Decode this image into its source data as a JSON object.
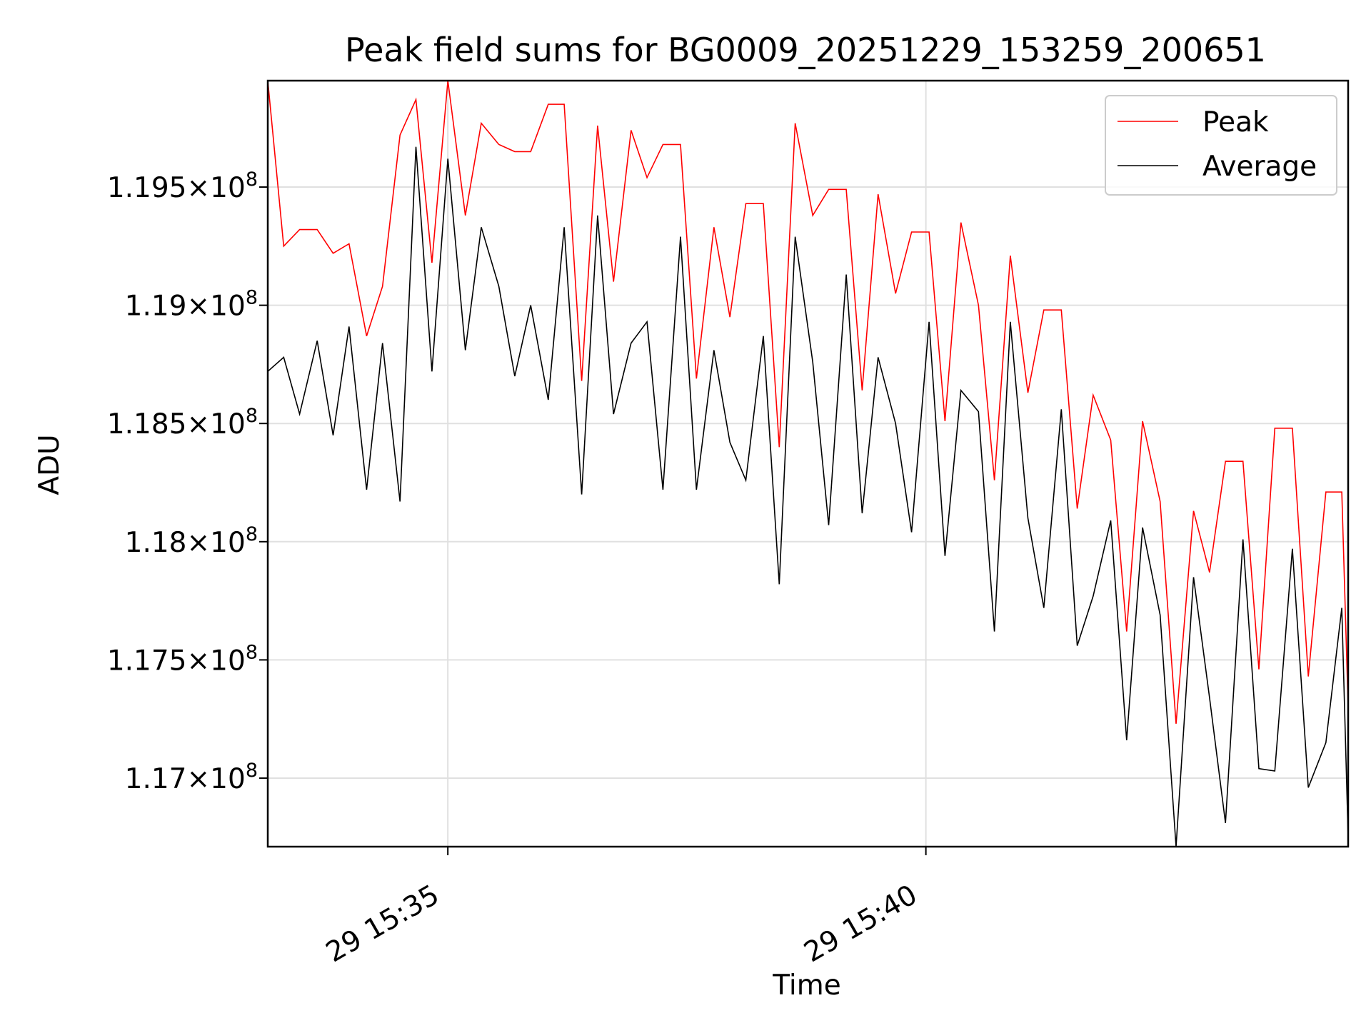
{
  "chart_data": {
    "type": "line",
    "title": "Peak field sums for BG0009_20251229_153259_200651",
    "xlabel": "Time",
    "ylabel": "ADU",
    "xlim": [
      "29 15:33:07",
      "29 15:44:25"
    ],
    "ylim": [
      116710000,
      119950000
    ],
    "grid": true,
    "legend": "top-right",
    "x_ticks": [
      {
        "value": "29 15:35:00",
        "label": "29 15:35"
      },
      {
        "value": "29 15:40:00",
        "label": "29 15:40"
      }
    ],
    "y_ticks": [
      {
        "value": 117000000,
        "label": "1.17",
        "exp": "8"
      },
      {
        "value": 117500000,
        "label": "1.175",
        "exp": "8"
      },
      {
        "value": 118000000,
        "label": "1.18",
        "exp": "8"
      },
      {
        "value": 118500000,
        "label": "1.185",
        "exp": "8"
      },
      {
        "value": 119000000,
        "label": "1.19",
        "exp": "8"
      },
      {
        "value": 119500000,
        "label": "1.195",
        "exp": "8"
      }
    ],
    "x": [
      "29 15:33:07",
      "29 15:33:17",
      "29 15:33:27",
      "29 15:33:38",
      "29 15:33:48",
      "29 15:33:58",
      "29 15:34:09",
      "29 15:34:19",
      "29 15:34:30",
      "29 15:34:40",
      "29 15:34:50",
      "29 15:35:00",
      "29 15:35:11",
      "29 15:35:21",
      "29 15:35:32",
      "29 15:35:42",
      "29 15:35:52",
      "29 15:36:03",
      "29 15:36:13",
      "29 15:36:24",
      "29 15:36:34",
      "29 15:36:44",
      "29 15:36:55",
      "29 15:37:05",
      "29 15:37:15",
      "29 15:37:26",
      "29 15:37:36",
      "29 15:37:47",
      "29 15:37:57",
      "29 15:38:07",
      "29 15:38:18",
      "29 15:38:28",
      "29 15:38:38",
      "29 15:38:49",
      "29 15:38:59",
      "29 15:39:10",
      "29 15:39:20",
      "29 15:39:30",
      "29 15:39:41",
      "29 15:39:51",
      "29 15:40:02",
      "29 15:40:12",
      "29 15:40:22",
      "29 15:40:33",
      "29 15:40:43",
      "29 15:40:53",
      "29 15:41:04",
      "29 15:41:14",
      "29 15:41:25",
      "29 15:41:35",
      "29 15:41:45",
      "29 15:41:56",
      "29 15:42:06",
      "29 15:42:16",
      "29 15:42:27",
      "29 15:42:37",
      "29 15:42:48",
      "29 15:42:58",
      "29 15:43:08",
      "29 15:43:19",
      "29 15:43:29",
      "29 15:43:39",
      "29 15:43:50",
      "29 15:44:00",
      "29 15:44:11",
      "29 15:44:21",
      "29 15:44:25"
    ],
    "series": [
      {
        "name": "Peak",
        "color": "#ff0000",
        "values": [
          119950000,
          119250000,
          119320000,
          119320000,
          119220000,
          119260000,
          118870000,
          119080000,
          119720000,
          119870000,
          119180000,
          119950000,
          119380000,
          119770000,
          119680000,
          119650000,
          119650000,
          119850000,
          119850000,
          118680000,
          119760000,
          119100000,
          119740000,
          119540000,
          119680000,
          119680000,
          118690000,
          119330000,
          118950000,
          119430000,
          119430000,
          118400000,
          119770000,
          119380000,
          119490000,
          119490000,
          118640000,
          119470000,
          119050000,
          119310000,
          119310000,
          118510000,
          119350000,
          119000000,
          118260000,
          119210000,
          118630000,
          118980000,
          118980000,
          118140000,
          118620000,
          118430000,
          117620000,
          118510000,
          118170000,
          117230000,
          118130000,
          117870000,
          118340000,
          118340000,
          117460000,
          118480000,
          118480000,
          117430000,
          118210000,
          118210000,
          117300000
        ]
      },
      {
        "name": "Average",
        "color": "#000000",
        "values": [
          118720000,
          118780000,
          118540000,
          118850000,
          118450000,
          118910000,
          118220000,
          118840000,
          118170000,
          119670000,
          118720000,
          119620000,
          118810000,
          119330000,
          119080000,
          118700000,
          119000000,
          118600000,
          119330000,
          118200000,
          119380000,
          118540000,
          118840000,
          118930000,
          118220000,
          119290000,
          118220000,
          118810000,
          118420000,
          118260000,
          118870000,
          117820000,
          119290000,
          118760000,
          118070000,
          119130000,
          118120000,
          118780000,
          118500000,
          118040000,
          118930000,
          117940000,
          118640000,
          118550000,
          117620000,
          118930000,
          118100000,
          117720000,
          118560000,
          117560000,
          117770000,
          118090000,
          117160000,
          118060000,
          117690000,
          116710000,
          117850000,
          117340000,
          116810000,
          118010000,
          117040000,
          117030000,
          117970000,
          116960000,
          117150000,
          117720000,
          116750000
        ]
      }
    ]
  }
}
